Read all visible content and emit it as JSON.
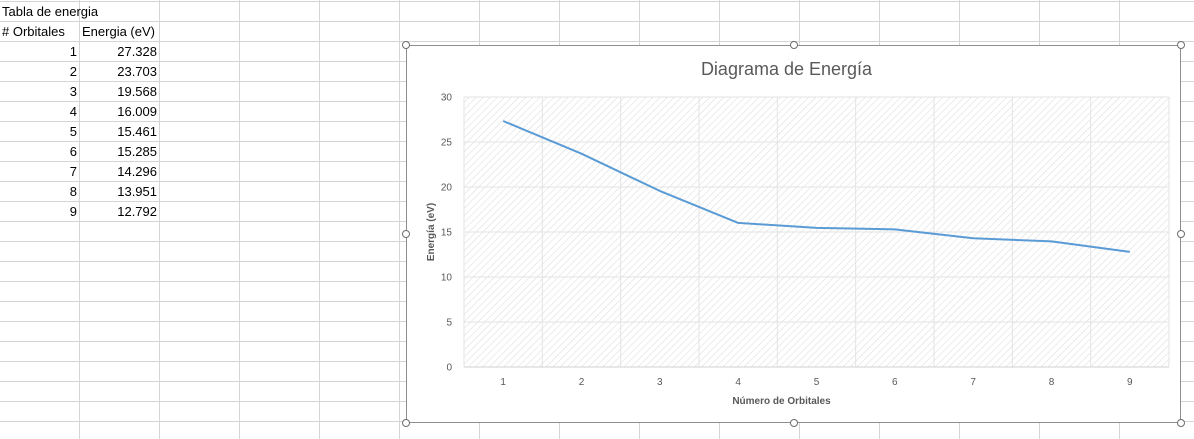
{
  "sheet": {
    "title": "Tabla de energia",
    "headers": [
      "# Orbitales",
      "Energia (eV)"
    ],
    "rows": [
      [
        "1",
        "27.328"
      ],
      [
        "2",
        "23.703"
      ],
      [
        "3",
        "19.568"
      ],
      [
        "4",
        "16.009"
      ],
      [
        "5",
        "15.461"
      ],
      [
        "6",
        "15.285"
      ],
      [
        "7",
        "14.296"
      ],
      [
        "8",
        "13.951"
      ],
      [
        "9",
        "12.792"
      ]
    ],
    "gridline_color": "#d4d4d4"
  },
  "chart_data": {
    "type": "line",
    "title": "Diagrama de Energía",
    "xlabel": "Número de Orbitales",
    "ylabel": "Energía (eV)",
    "categories": [
      "1",
      "2",
      "3",
      "4",
      "5",
      "6",
      "7",
      "8",
      "9"
    ],
    "series": [
      {
        "values": [
          27.328,
          23.703,
          19.568,
          16.009,
          15.461,
          15.285,
          14.296,
          13.951,
          12.792
        ],
        "color": "#5b9bd5"
      }
    ],
    "ylim": [
      0,
      30
    ],
    "yticks": [
      0,
      5,
      10,
      15,
      20,
      25,
      30
    ],
    "grid": true,
    "plot_fill": "diagonal-hatch",
    "legend": "none"
  }
}
